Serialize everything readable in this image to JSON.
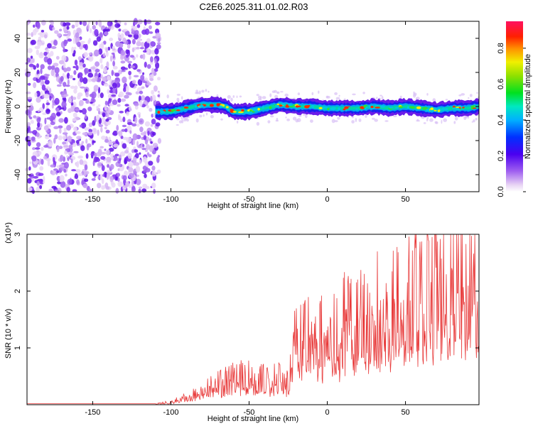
{
  "title": "C2E6.2025.311.01.02.R03",
  "chart_data": [
    {
      "type": "heatmap",
      "xlabel": "Height of straight line (km)",
      "ylabel": "Frequency (Hz)",
      "xlim": [
        -192,
        97
      ],
      "ylim": [
        -50,
        50
      ],
      "x_ticks": [
        -150,
        -100,
        -50,
        0,
        50
      ],
      "y_ticks": [
        -40,
        -20,
        0,
        20,
        40
      ],
      "noise_region_x": [
        -192,
        -110
      ],
      "signal_track": {
        "x": [
          -110,
          -100,
          -90,
          -80,
          -70,
          -65,
          -60,
          -55,
          -50,
          -40,
          -30,
          -20,
          -10,
          0,
          10,
          20,
          30,
          40,
          50,
          60,
          70,
          80,
          90,
          97
        ],
        "freq_center": [
          -3,
          -3,
          -1,
          1,
          1,
          0,
          -3,
          -3,
          -3,
          -1,
          1,
          0,
          0,
          -1,
          -1,
          -1,
          0,
          -1,
          0,
          -1,
          -2,
          -1,
          -1,
          0
        ]
      },
      "colorbar": {
        "label": "Normalized spectral amplitude",
        "range": [
          0,
          0.95
        ],
        "ticks": [
          0.0,
          0.2,
          0.4,
          0.6,
          0.8
        ]
      }
    },
    {
      "type": "line",
      "xlabel": "Height of straight line (km)",
      "ylabel": "SNR (10 * v/v)",
      "scale_label": "(x10⁴)",
      "xlim": [
        -192,
        97
      ],
      "ylim": [
        0,
        3
      ],
      "x_ticks": [
        -150,
        -100,
        -50,
        0,
        50
      ],
      "y_ticks": [
        1,
        2,
        3
      ],
      "color": "#e83a3a",
      "envelope": {
        "x": [
          -192,
          -110,
          -100,
          -90,
          -80,
          -70,
          -60,
          -50,
          -40,
          -30,
          -25,
          -20,
          -10,
          0,
          10,
          20,
          30,
          40,
          50,
          60,
          70,
          80,
          90,
          97
        ],
        "y": [
          0.02,
          0.02,
          0.05,
          0.15,
          0.3,
          0.45,
          0.55,
          0.55,
          0.5,
          0.55,
          0.45,
          1.3,
          1.5,
          1.4,
          1.6,
          1.7,
          1.9,
          2.1,
          2.3,
          2.2,
          2.5,
          2.4,
          2.3,
          2.3
        ]
      }
    }
  ]
}
